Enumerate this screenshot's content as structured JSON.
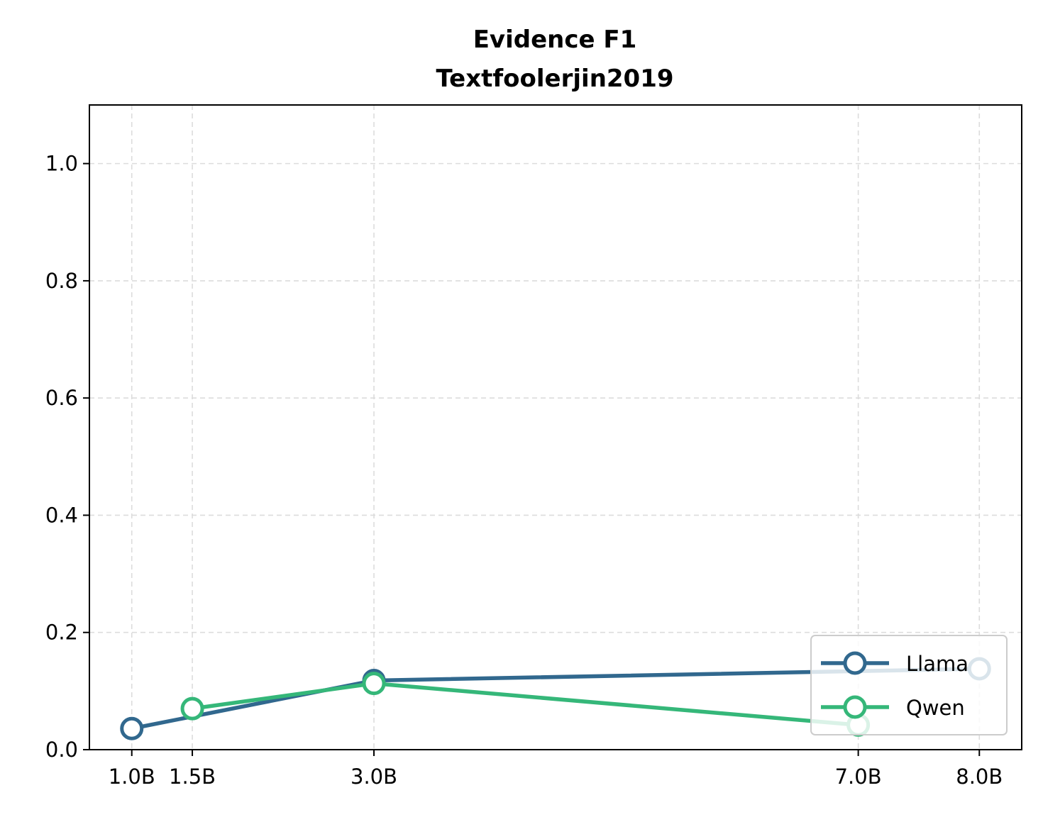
{
  "chart_data": {
    "type": "line",
    "title": "Evidence F1",
    "subtitle": "Textfoolerjin2019",
    "xlabel": "",
    "ylabel": "",
    "x_tick_labels": [
      "1.0B",
      "1.5B",
      "3.0B",
      "7.0B",
      "8.0B"
    ],
    "x_ticks": [
      1.0,
      1.5,
      3.0,
      7.0,
      8.0
    ],
    "y_tick_labels": [
      "0.0",
      "0.2",
      "0.4",
      "0.6",
      "0.8",
      "1.0"
    ],
    "y_ticks": [
      0.0,
      0.2,
      0.4,
      0.6,
      0.8,
      1.0
    ],
    "ylim": [
      0.0,
      1.1
    ],
    "xlim": [
      0.65,
      8.35
    ],
    "grid": true,
    "legend_position": "bottom-right",
    "series": [
      {
        "name": "Llama",
        "color": "#31688e",
        "x": [
          1.0,
          3.0,
          8.0
        ],
        "y": [
          0.036,
          0.118,
          0.138
        ]
      },
      {
        "name": "Qwen",
        "color": "#35b779",
        "x": [
          1.5,
          3.0,
          7.0
        ],
        "y": [
          0.07,
          0.113,
          0.042
        ]
      }
    ]
  }
}
